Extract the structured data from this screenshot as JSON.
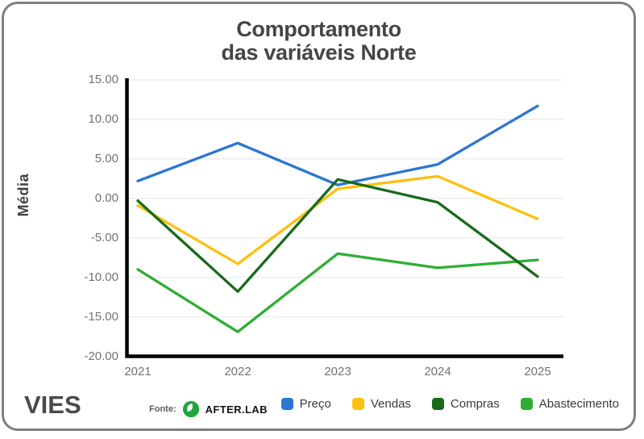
{
  "title": {
    "line1": "Comportamento",
    "line2": "das variáveis Norte"
  },
  "chart_data": {
    "type": "line",
    "title": "Comportamento das variáveis Norte",
    "ylabel": "Média",
    "xlabel": "",
    "categories": [
      "2021",
      "2022",
      "2023",
      "2024",
      "2025"
    ],
    "series": [
      {
        "name": "Preço",
        "color": "#2b76d2",
        "values": [
          2.2,
          7.0,
          1.7,
          4.3,
          11.7
        ]
      },
      {
        "name": "Vendas",
        "color": "#fcc013",
        "values": [
          -0.9,
          -8.3,
          1.2,
          2.8,
          -2.6
        ]
      },
      {
        "name": "Compras",
        "color": "#186a1b",
        "values": [
          -0.3,
          -11.8,
          2.4,
          -0.5,
          -9.9
        ]
      },
      {
        "name": "Abastecimento",
        "color": "#2fae33",
        "values": [
          -9.0,
          -16.9,
          -7.0,
          -8.8,
          -7.8
        ]
      }
    ],
    "draw_order": [
      0,
      1,
      3,
      2
    ],
    "ylim": [
      -20,
      15
    ],
    "y_ticks": [
      {
        "value": 15,
        "label": "15.00"
      },
      {
        "value": 10,
        "label": "10.00"
      },
      {
        "value": 5,
        "label": "5.00"
      },
      {
        "value": 0,
        "label": "0.00"
      },
      {
        "value": -5,
        "label": "-5.00"
      },
      {
        "value": -10,
        "label": "-10.00"
      },
      {
        "value": -15,
        "label": "-15.00"
      },
      {
        "value": -20,
        "label": "-20.00"
      }
    ],
    "grid": true,
    "legend_position": "bottom-right"
  },
  "footer": {
    "brand": "VIES",
    "source_label": "Fonte:",
    "source_name": "AFTER.LAB"
  },
  "theme": {
    "background": "#ffffff",
    "card_border": "#7f7f7f",
    "axis": "#000000",
    "grid_line": "#ededed",
    "tick_text": "#737373",
    "title_text": "#454545",
    "legend_text": "#3a3a3a",
    "brand_text": "#4a4a4a",
    "logo_green": "#1fa53c"
  }
}
